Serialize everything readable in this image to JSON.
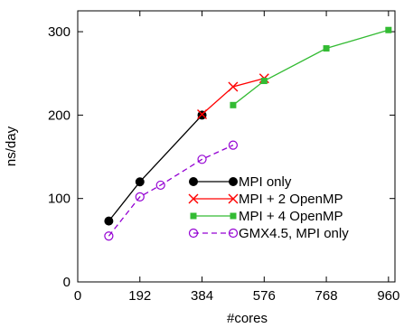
{
  "chart_data": {
    "type": "line",
    "title": "",
    "xlabel": "#cores",
    "ylabel": "ns/day",
    "xlim": [
      0,
      980
    ],
    "ylim": [
      0,
      325
    ],
    "x_ticks": [
      0,
      192,
      384,
      576,
      768,
      960
    ],
    "x_tick_labels": [
      "0",
      "192",
      "384",
      "576",
      "768",
      "960"
    ],
    "y_ticks": [
      0,
      100,
      200,
      300
    ],
    "y_tick_labels": [
      "0",
      "100",
      "200",
      "300"
    ],
    "grid": false,
    "legend_position": "lower-right",
    "series": [
      {
        "name": "MPI only",
        "color": "#000000",
        "dash": "solid",
        "marker": "filled-circle",
        "x": [
          96,
          192,
          384
        ],
        "y": [
          73,
          120,
          200
        ]
      },
      {
        "name": "MPI + 2 OpenMP",
        "color": "#ff0000",
        "dash": "solid",
        "marker": "cross",
        "x": [
          384,
          480,
          576
        ],
        "y": [
          201,
          234,
          244
        ]
      },
      {
        "name": "MPI + 4 OpenMP",
        "color": "#33bb33",
        "dash": "solid",
        "marker": "filled-square",
        "x": [
          480,
          576,
          768,
          960
        ],
        "y": [
          212,
          241,
          280,
          302
        ]
      },
      {
        "name": "GMX4.5, MPI only",
        "color": "#9400d3",
        "dash": "dashed",
        "marker": "open-circle",
        "x": [
          96,
          192,
          256,
          384,
          480
        ],
        "y": [
          55,
          102,
          116,
          147,
          164
        ]
      }
    ]
  }
}
